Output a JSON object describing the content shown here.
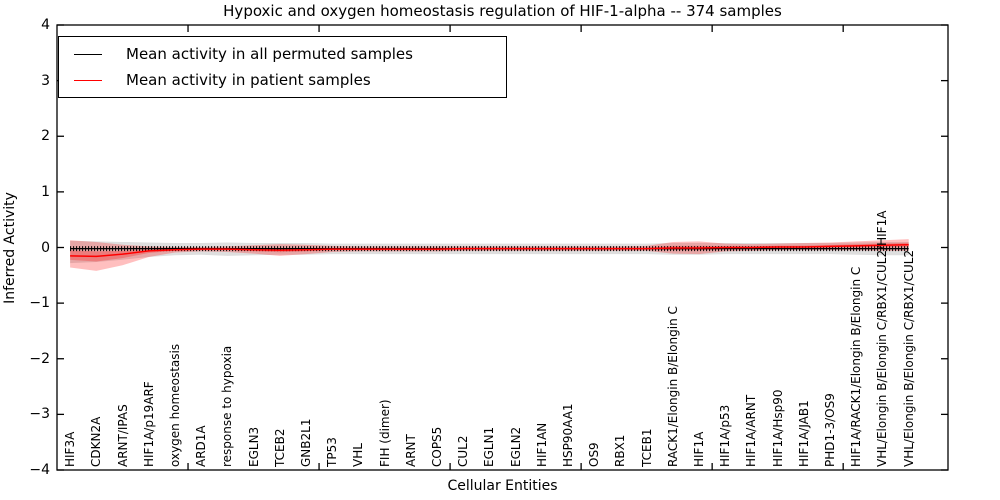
{
  "title": "Hypoxic and oxygen homeostasis regulation of HIF-1-alpha -- 374 samples",
  "legend": {
    "items": [
      {
        "label": "Mean activity in all permuted samples",
        "color": "#000000"
      },
      {
        "label": "Mean activity in patient samples",
        "color": "#ff0000"
      }
    ]
  },
  "chart_data": {
    "type": "line",
    "title": "Hypoxic and oxygen homeostasis regulation of HIF-1-alpha -- 374 samples",
    "xlabel": "Cellular Entities",
    "ylabel": "Inferred Activity",
    "ylim": [
      -4,
      4
    ],
    "yticks": [
      4,
      3,
      2,
      1,
      0,
      -1,
      -2,
      -3,
      -4
    ],
    "x_major_ticks": [
      5,
      10,
      15,
      20,
      25,
      30
    ],
    "grid": false,
    "legend_position": "upper left",
    "categories": [
      "HIF3A",
      "CDKN2A",
      "ARNT/IPAS",
      "HIF1A/p19ARF",
      "oxygen homeostasis",
      "ARD1A",
      "response to hypoxia",
      "EGLN3",
      "TCEB2",
      "GNB2L1",
      "TP53",
      "VHL",
      "FIH (dimer)",
      "ARNT",
      "COPS5",
      "CUL2",
      "EGLN1",
      "EGLN2",
      "HIF1AN",
      "HSP90AA1",
      "OS9",
      "RBX1",
      "TCEB1",
      "RACK1/Elongin B/Elongin C",
      "HIF1A",
      "HIF1A/p53",
      "HIF1A/ARNT",
      "HIF1A/Hsp90",
      "HIF1A/JAB1",
      "PHD1-3/OS9",
      "HIF1A/RACK1/Elongin B/Elongin C",
      "VHL/Elongin B/Elongin C/RBX1/CUL2/HIF1A",
      "VHL/Elongin B/Elongin C/RBX1/CUL2"
    ],
    "series": [
      {
        "name": "Mean activity in all permuted samples",
        "color": "#000000",
        "band_color": "rgba(0,0,0,0.13)",
        "values": [
          -0.02,
          -0.02,
          -0.02,
          -0.02,
          -0.02,
          -0.02,
          -0.02,
          -0.02,
          -0.02,
          -0.02,
          -0.02,
          -0.02,
          -0.02,
          -0.02,
          -0.02,
          -0.02,
          -0.02,
          -0.02,
          -0.02,
          -0.02,
          -0.02,
          -0.02,
          -0.02,
          -0.02,
          -0.02,
          -0.02,
          -0.02,
          -0.02,
          -0.02,
          -0.02,
          -0.02,
          -0.02,
          -0.02
        ],
        "band_upper": [
          0.12,
          0.11,
          0.1,
          0.09,
          0.08,
          0.08,
          0.09,
          0.08,
          0.08,
          0.08,
          0.07,
          0.07,
          0.07,
          0.07,
          0.07,
          0.07,
          0.07,
          0.07,
          0.07,
          0.07,
          0.07,
          0.07,
          0.07,
          0.08,
          0.08,
          0.08,
          0.08,
          0.08,
          0.08,
          0.08,
          0.09,
          0.1,
          0.1
        ],
        "band_lower": [
          -0.28,
          -0.26,
          -0.22,
          -0.17,
          -0.14,
          -0.13,
          -0.15,
          -0.14,
          -0.13,
          -0.13,
          -0.12,
          -0.12,
          -0.12,
          -0.12,
          -0.12,
          -0.12,
          -0.12,
          -0.12,
          -0.12,
          -0.12,
          -0.12,
          -0.12,
          -0.12,
          -0.13,
          -0.13,
          -0.12,
          -0.12,
          -0.12,
          -0.12,
          -0.12,
          -0.13,
          -0.14,
          -0.14
        ]
      },
      {
        "name": "Mean activity in patient samples",
        "color": "#ff0000",
        "band_color": "rgba(255,0,0,0.25)",
        "values": [
          -0.15,
          -0.16,
          -0.12,
          -0.06,
          -0.04,
          -0.03,
          -0.03,
          -0.04,
          -0.05,
          -0.04,
          -0.03,
          -0.03,
          -0.03,
          -0.03,
          -0.03,
          -0.02,
          -0.02,
          -0.02,
          -0.02,
          -0.02,
          -0.02,
          -0.02,
          -0.02,
          -0.01,
          -0.01,
          0.0,
          0.0,
          0.01,
          0.01,
          0.02,
          0.03,
          0.04,
          0.05
        ],
        "band_upper": [
          0.13,
          0.1,
          0.05,
          0.02,
          0.01,
          0.01,
          0.02,
          0.04,
          0.06,
          0.05,
          0.03,
          0.02,
          0.02,
          0.02,
          0.02,
          0.02,
          0.02,
          0.02,
          0.02,
          0.02,
          0.02,
          0.02,
          0.03,
          0.1,
          0.11,
          0.07,
          0.06,
          0.07,
          0.08,
          0.09,
          0.11,
          0.13,
          0.15
        ],
        "band_lower": [
          -0.36,
          -0.42,
          -0.32,
          -0.17,
          -0.09,
          -0.07,
          -0.08,
          -0.11,
          -0.15,
          -0.12,
          -0.08,
          -0.07,
          -0.07,
          -0.07,
          -0.07,
          -0.06,
          -0.06,
          -0.06,
          -0.06,
          -0.06,
          -0.06,
          -0.06,
          -0.06,
          -0.11,
          -0.12,
          -0.07,
          -0.06,
          -0.05,
          -0.05,
          -0.05,
          -0.05,
          -0.06,
          -0.06
        ]
      }
    ]
  }
}
